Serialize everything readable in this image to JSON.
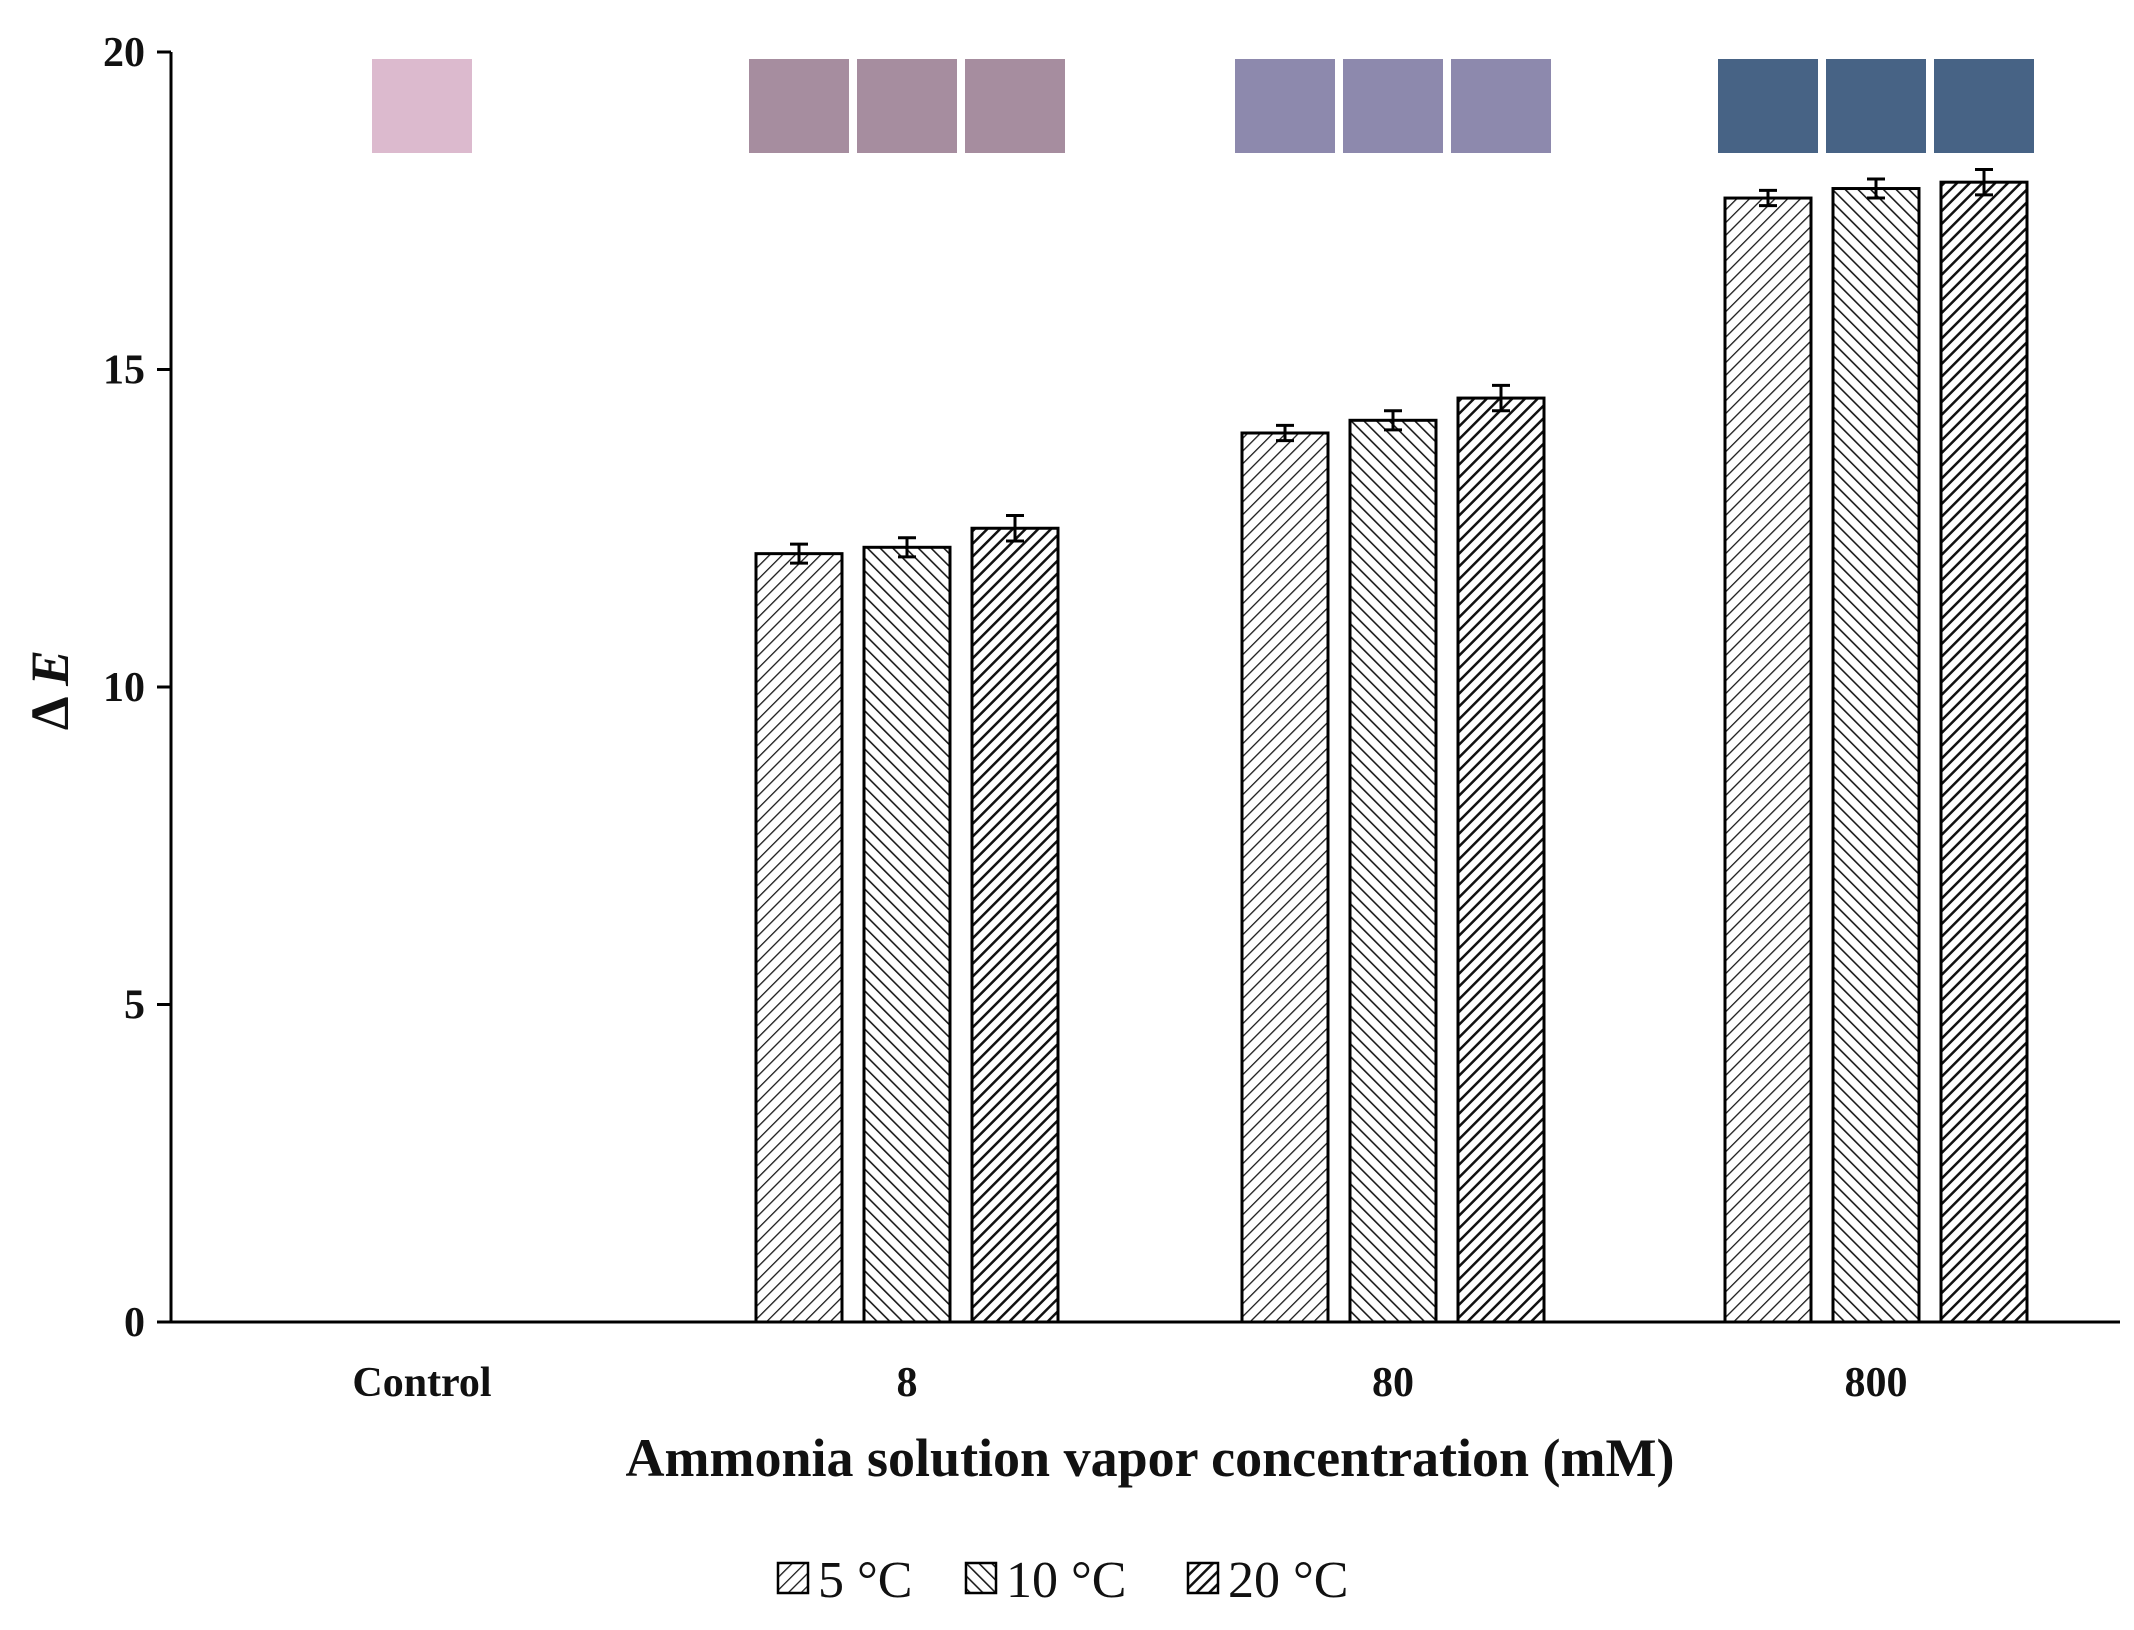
{
  "chart_data": {
    "type": "bar",
    "title": "",
    "xlabel": "Ammonia solution vapor concentration (mM)",
    "ylabel": "Δ E",
    "ylabel_prefix": "Δ ",
    "ylabel_var": "E",
    "ylim": [
      0,
      20
    ],
    "yticks": [
      0,
      5,
      10,
      15,
      20
    ],
    "categories": [
      "Control",
      "8",
      "80",
      "800"
    ],
    "series": [
      {
        "name": "5 °C",
        "values": [
          0,
          12.1,
          14.0,
          17.7
        ],
        "errors": [
          0,
          0.15,
          0.12,
          0.12
        ],
        "pattern": "hatch-light"
      },
      {
        "name": "10 °C",
        "values": [
          0,
          12.2,
          14.2,
          17.85
        ],
        "errors": [
          0,
          0.15,
          0.15,
          0.15
        ],
        "pattern": "hatch-medium"
      },
      {
        "name": "20 °C",
        "values": [
          0,
          12.5,
          14.55,
          17.95
        ],
        "errors": [
          0,
          0.2,
          0.2,
          0.2
        ],
        "pattern": "hatch-dark"
      }
    ],
    "color_swatches": [
      {
        "category": "Control",
        "colors": [
          "#dcbace"
        ]
      },
      {
        "category": "8",
        "colors": [
          "#a68d9f",
          "#a68d9f",
          "#a68d9f"
        ]
      },
      {
        "category": "80",
        "colors": [
          "#8d89ad",
          "#8d89ad",
          "#8d89ad"
        ]
      },
      {
        "category": "800",
        "colors": [
          "#476385",
          "#476385",
          "#476385"
        ]
      }
    ],
    "legend_position": "bottom-center",
    "grid": false
  }
}
